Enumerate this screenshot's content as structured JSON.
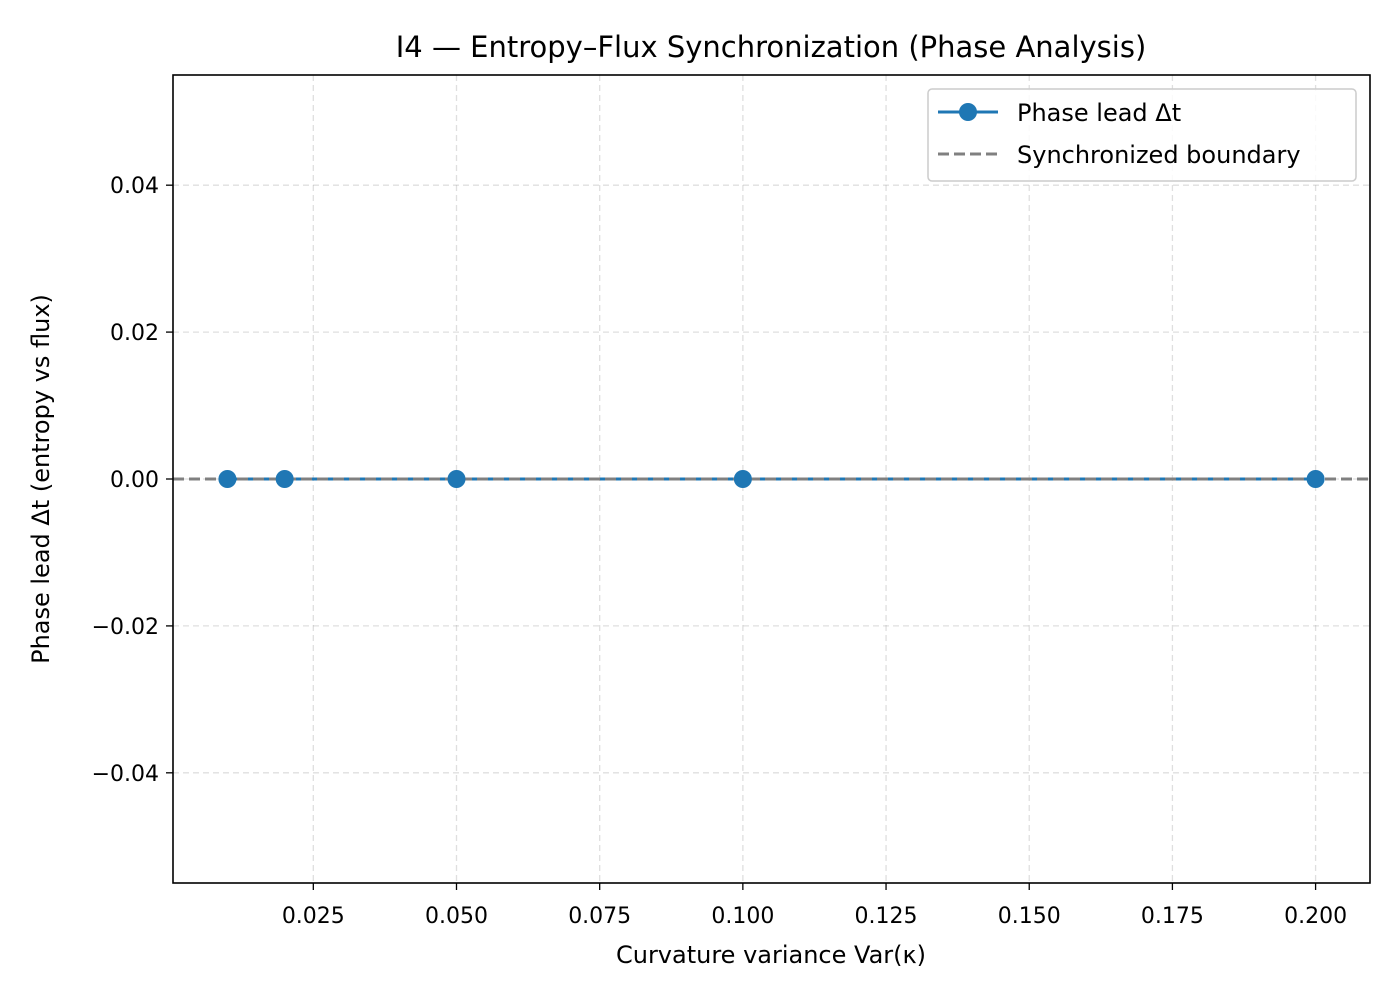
{
  "chart_data": {
    "type": "line",
    "title": "I4 — Entropy–Flux Synchronization (Phase Analysis)",
    "xlabel": "Curvature variance Var(κ)",
    "ylabel": "Phase lead Δt (entropy vs flux)",
    "xlim": [
      0.0005,
      0.2095
    ],
    "ylim": [
      -0.055,
      0.055
    ],
    "xticks": [
      0.025,
      0.05,
      0.075,
      0.1,
      0.125,
      0.15,
      0.175,
      0.2
    ],
    "xtick_labels": [
      "0.025",
      "0.050",
      "0.075",
      "0.100",
      "0.125",
      "0.150",
      "0.175",
      "0.200"
    ],
    "yticks": [
      -0.04,
      -0.02,
      0.0,
      0.02,
      0.04
    ],
    "ytick_labels": [
      "−0.04",
      "−0.02",
      "0.00",
      "0.02",
      "0.04"
    ],
    "grid": true,
    "legend_position": "top-right",
    "series": [
      {
        "name": "Phase lead Δt",
        "x": [
          0.01,
          0.02,
          0.05,
          0.1,
          0.2
        ],
        "y": [
          0,
          0,
          0,
          0,
          0
        ],
        "color": "#1f77b4",
        "marker": "circle",
        "line_style": "solid"
      }
    ],
    "reference_lines": [
      {
        "name": "Synchronized boundary",
        "y": 0,
        "color": "#808080",
        "line_style": "dashed"
      }
    ]
  }
}
